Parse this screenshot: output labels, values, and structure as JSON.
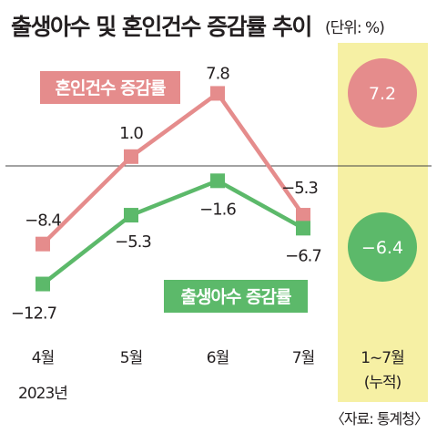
{
  "title": "출생아수 및 혼인건수 증감률 추이",
  "unit": "(단위: %)",
  "source": "〈자료: 통계청〉",
  "chart_data": {
    "type": "line",
    "categories": [
      "4월",
      "5월",
      "6월",
      "7월"
    ],
    "year_label": "2023년",
    "series": [
      {
        "name": "혼인건수 증감률",
        "color": "#e58c8c",
        "values": [
          -8.4,
          1.0,
          7.8,
          -5.3
        ]
      },
      {
        "name": "출생아수 증감률",
        "color": "#5cb96a",
        "values": [
          -12.7,
          -5.3,
          -1.6,
          -6.7
        ]
      }
    ],
    "cumulative": {
      "label": "1~7월",
      "sublabel": "(누적)",
      "highlight_color": "#f6f0a4",
      "values": [
        {
          "series": "혼인건수 증감률",
          "value": 7.2
        },
        {
          "series": "출생아수 증감률",
          "value": -6.4
        }
      ]
    },
    "baseline": 0
  }
}
